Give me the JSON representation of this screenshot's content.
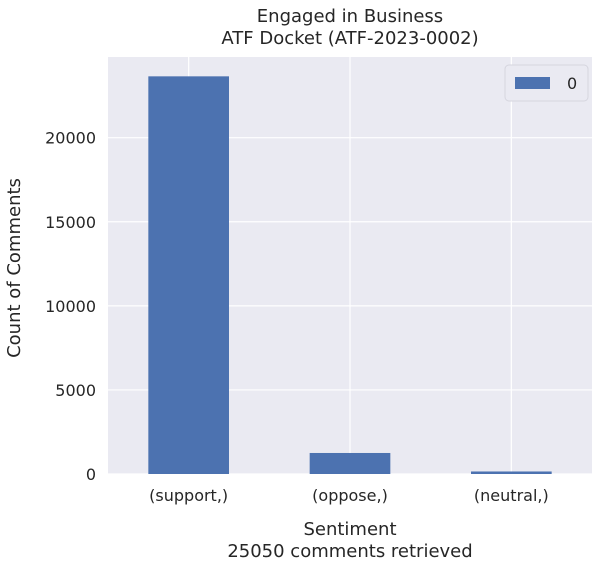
{
  "chart_data": {
    "type": "bar",
    "title": "Engaged in Business",
    "subtitle": "ATF Docket (ATF-2023-0002)",
    "xlabel": "Sentiment",
    "xlabel_note": "25050 comments retrieved",
    "ylabel": "Count of Comments",
    "categories": [
      "(support,)",
      "(oppose,)",
      "(neutral,)"
    ],
    "series": [
      {
        "name": "0",
        "values": [
          23650,
          1250,
          150
        ],
        "color": "#4c72b0"
      }
    ],
    "ylim": [
      0,
      24800
    ],
    "yticks": [
      0,
      5000,
      10000,
      15000,
      20000
    ],
    "grid": true,
    "legend": "top-right",
    "background": "#eaeaf2"
  }
}
